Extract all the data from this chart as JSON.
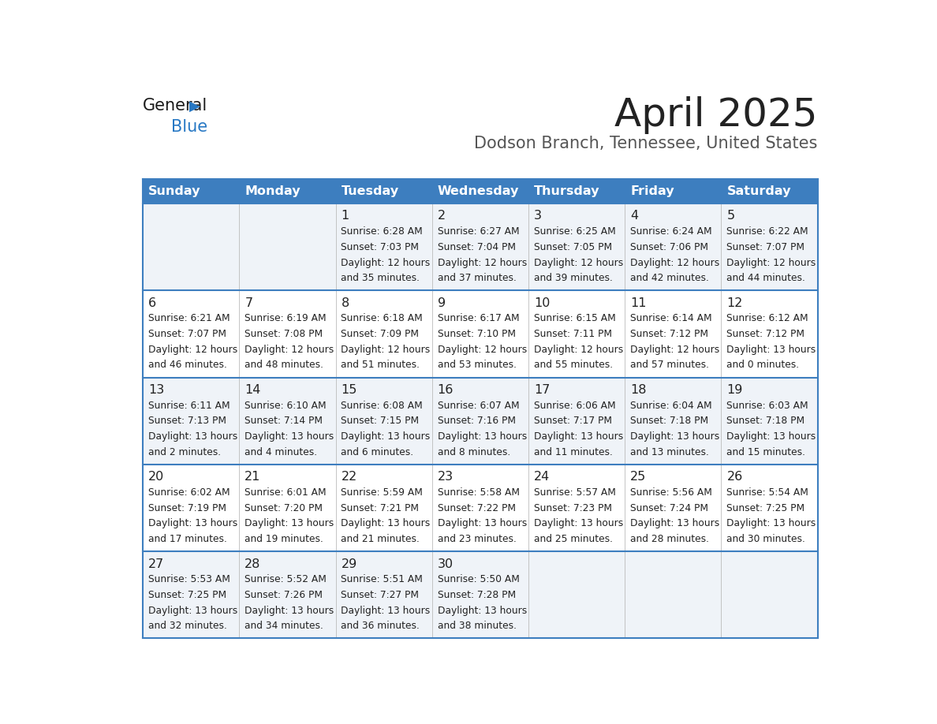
{
  "title": "April 2025",
  "subtitle": "Dodson Branch, Tennessee, United States",
  "header_bg": "#3d7ebf",
  "header_text": "#ffffff",
  "header_days": [
    "Sunday",
    "Monday",
    "Tuesday",
    "Wednesday",
    "Thursday",
    "Friday",
    "Saturday"
  ],
  "row_bg_light": "#eff3f8",
  "row_bg_white": "#ffffff",
  "cell_border": "#3d7ebf",
  "text_color": "#222222",
  "title_color": "#222222",
  "subtitle_color": "#555555",
  "logo_general_color": "#1a1a1a",
  "logo_blue_color": "#2778c4",
  "weeks": [
    [
      {
        "day": null,
        "sunrise": null,
        "sunset": null,
        "daylight_h": null,
        "daylight_m": null
      },
      {
        "day": null,
        "sunrise": null,
        "sunset": null,
        "daylight_h": null,
        "daylight_m": null
      },
      {
        "day": 1,
        "sunrise": "6:28 AM",
        "sunset": "7:03 PM",
        "daylight_h": "12 hours",
        "daylight_m": "and 35 minutes."
      },
      {
        "day": 2,
        "sunrise": "6:27 AM",
        "sunset": "7:04 PM",
        "daylight_h": "12 hours",
        "daylight_m": "and 37 minutes."
      },
      {
        "day": 3,
        "sunrise": "6:25 AM",
        "sunset": "7:05 PM",
        "daylight_h": "12 hours",
        "daylight_m": "and 39 minutes."
      },
      {
        "day": 4,
        "sunrise": "6:24 AM",
        "sunset": "7:06 PM",
        "daylight_h": "12 hours",
        "daylight_m": "and 42 minutes."
      },
      {
        "day": 5,
        "sunrise": "6:22 AM",
        "sunset": "7:07 PM",
        "daylight_h": "12 hours",
        "daylight_m": "and 44 minutes."
      }
    ],
    [
      {
        "day": 6,
        "sunrise": "6:21 AM",
        "sunset": "7:07 PM",
        "daylight_h": "12 hours",
        "daylight_m": "and 46 minutes."
      },
      {
        "day": 7,
        "sunrise": "6:19 AM",
        "sunset": "7:08 PM",
        "daylight_h": "12 hours",
        "daylight_m": "and 48 minutes."
      },
      {
        "day": 8,
        "sunrise": "6:18 AM",
        "sunset": "7:09 PM",
        "daylight_h": "12 hours",
        "daylight_m": "and 51 minutes."
      },
      {
        "day": 9,
        "sunrise": "6:17 AM",
        "sunset": "7:10 PM",
        "daylight_h": "12 hours",
        "daylight_m": "and 53 minutes."
      },
      {
        "day": 10,
        "sunrise": "6:15 AM",
        "sunset": "7:11 PM",
        "daylight_h": "12 hours",
        "daylight_m": "and 55 minutes."
      },
      {
        "day": 11,
        "sunrise": "6:14 AM",
        "sunset": "7:12 PM",
        "daylight_h": "12 hours",
        "daylight_m": "and 57 minutes."
      },
      {
        "day": 12,
        "sunrise": "6:12 AM",
        "sunset": "7:12 PM",
        "daylight_h": "13 hours",
        "daylight_m": "and 0 minutes."
      }
    ],
    [
      {
        "day": 13,
        "sunrise": "6:11 AM",
        "sunset": "7:13 PM",
        "daylight_h": "13 hours",
        "daylight_m": "and 2 minutes."
      },
      {
        "day": 14,
        "sunrise": "6:10 AM",
        "sunset": "7:14 PM",
        "daylight_h": "13 hours",
        "daylight_m": "and 4 minutes."
      },
      {
        "day": 15,
        "sunrise": "6:08 AM",
        "sunset": "7:15 PM",
        "daylight_h": "13 hours",
        "daylight_m": "and 6 minutes."
      },
      {
        "day": 16,
        "sunrise": "6:07 AM",
        "sunset": "7:16 PM",
        "daylight_h": "13 hours",
        "daylight_m": "and 8 minutes."
      },
      {
        "day": 17,
        "sunrise": "6:06 AM",
        "sunset": "7:17 PM",
        "daylight_h": "13 hours",
        "daylight_m": "and 11 minutes."
      },
      {
        "day": 18,
        "sunrise": "6:04 AM",
        "sunset": "7:18 PM",
        "daylight_h": "13 hours",
        "daylight_m": "and 13 minutes."
      },
      {
        "day": 19,
        "sunrise": "6:03 AM",
        "sunset": "7:18 PM",
        "daylight_h": "13 hours",
        "daylight_m": "and 15 minutes."
      }
    ],
    [
      {
        "day": 20,
        "sunrise": "6:02 AM",
        "sunset": "7:19 PM",
        "daylight_h": "13 hours",
        "daylight_m": "and 17 minutes."
      },
      {
        "day": 21,
        "sunrise": "6:01 AM",
        "sunset": "7:20 PM",
        "daylight_h": "13 hours",
        "daylight_m": "and 19 minutes."
      },
      {
        "day": 22,
        "sunrise": "5:59 AM",
        "sunset": "7:21 PM",
        "daylight_h": "13 hours",
        "daylight_m": "and 21 minutes."
      },
      {
        "day": 23,
        "sunrise": "5:58 AM",
        "sunset": "7:22 PM",
        "daylight_h": "13 hours",
        "daylight_m": "and 23 minutes."
      },
      {
        "day": 24,
        "sunrise": "5:57 AM",
        "sunset": "7:23 PM",
        "daylight_h": "13 hours",
        "daylight_m": "and 25 minutes."
      },
      {
        "day": 25,
        "sunrise": "5:56 AM",
        "sunset": "7:24 PM",
        "daylight_h": "13 hours",
        "daylight_m": "and 28 minutes."
      },
      {
        "day": 26,
        "sunrise": "5:54 AM",
        "sunset": "7:25 PM",
        "daylight_h": "13 hours",
        "daylight_m": "and 30 minutes."
      }
    ],
    [
      {
        "day": 27,
        "sunrise": "5:53 AM",
        "sunset": "7:25 PM",
        "daylight_h": "13 hours",
        "daylight_m": "and 32 minutes."
      },
      {
        "day": 28,
        "sunrise": "5:52 AM",
        "sunset": "7:26 PM",
        "daylight_h": "13 hours",
        "daylight_m": "and 34 minutes."
      },
      {
        "day": 29,
        "sunrise": "5:51 AM",
        "sunset": "7:27 PM",
        "daylight_h": "13 hours",
        "daylight_m": "and 36 minutes."
      },
      {
        "day": 30,
        "sunrise": "5:50 AM",
        "sunset": "7:28 PM",
        "daylight_h": "13 hours",
        "daylight_m": "and 38 minutes."
      },
      {
        "day": null,
        "sunrise": null,
        "sunset": null,
        "daylight_h": null,
        "daylight_m": null
      },
      {
        "day": null,
        "sunrise": null,
        "sunset": null,
        "daylight_h": null,
        "daylight_m": null
      },
      {
        "day": null,
        "sunrise": null,
        "sunset": null,
        "daylight_h": null,
        "daylight_m": null
      }
    ]
  ]
}
